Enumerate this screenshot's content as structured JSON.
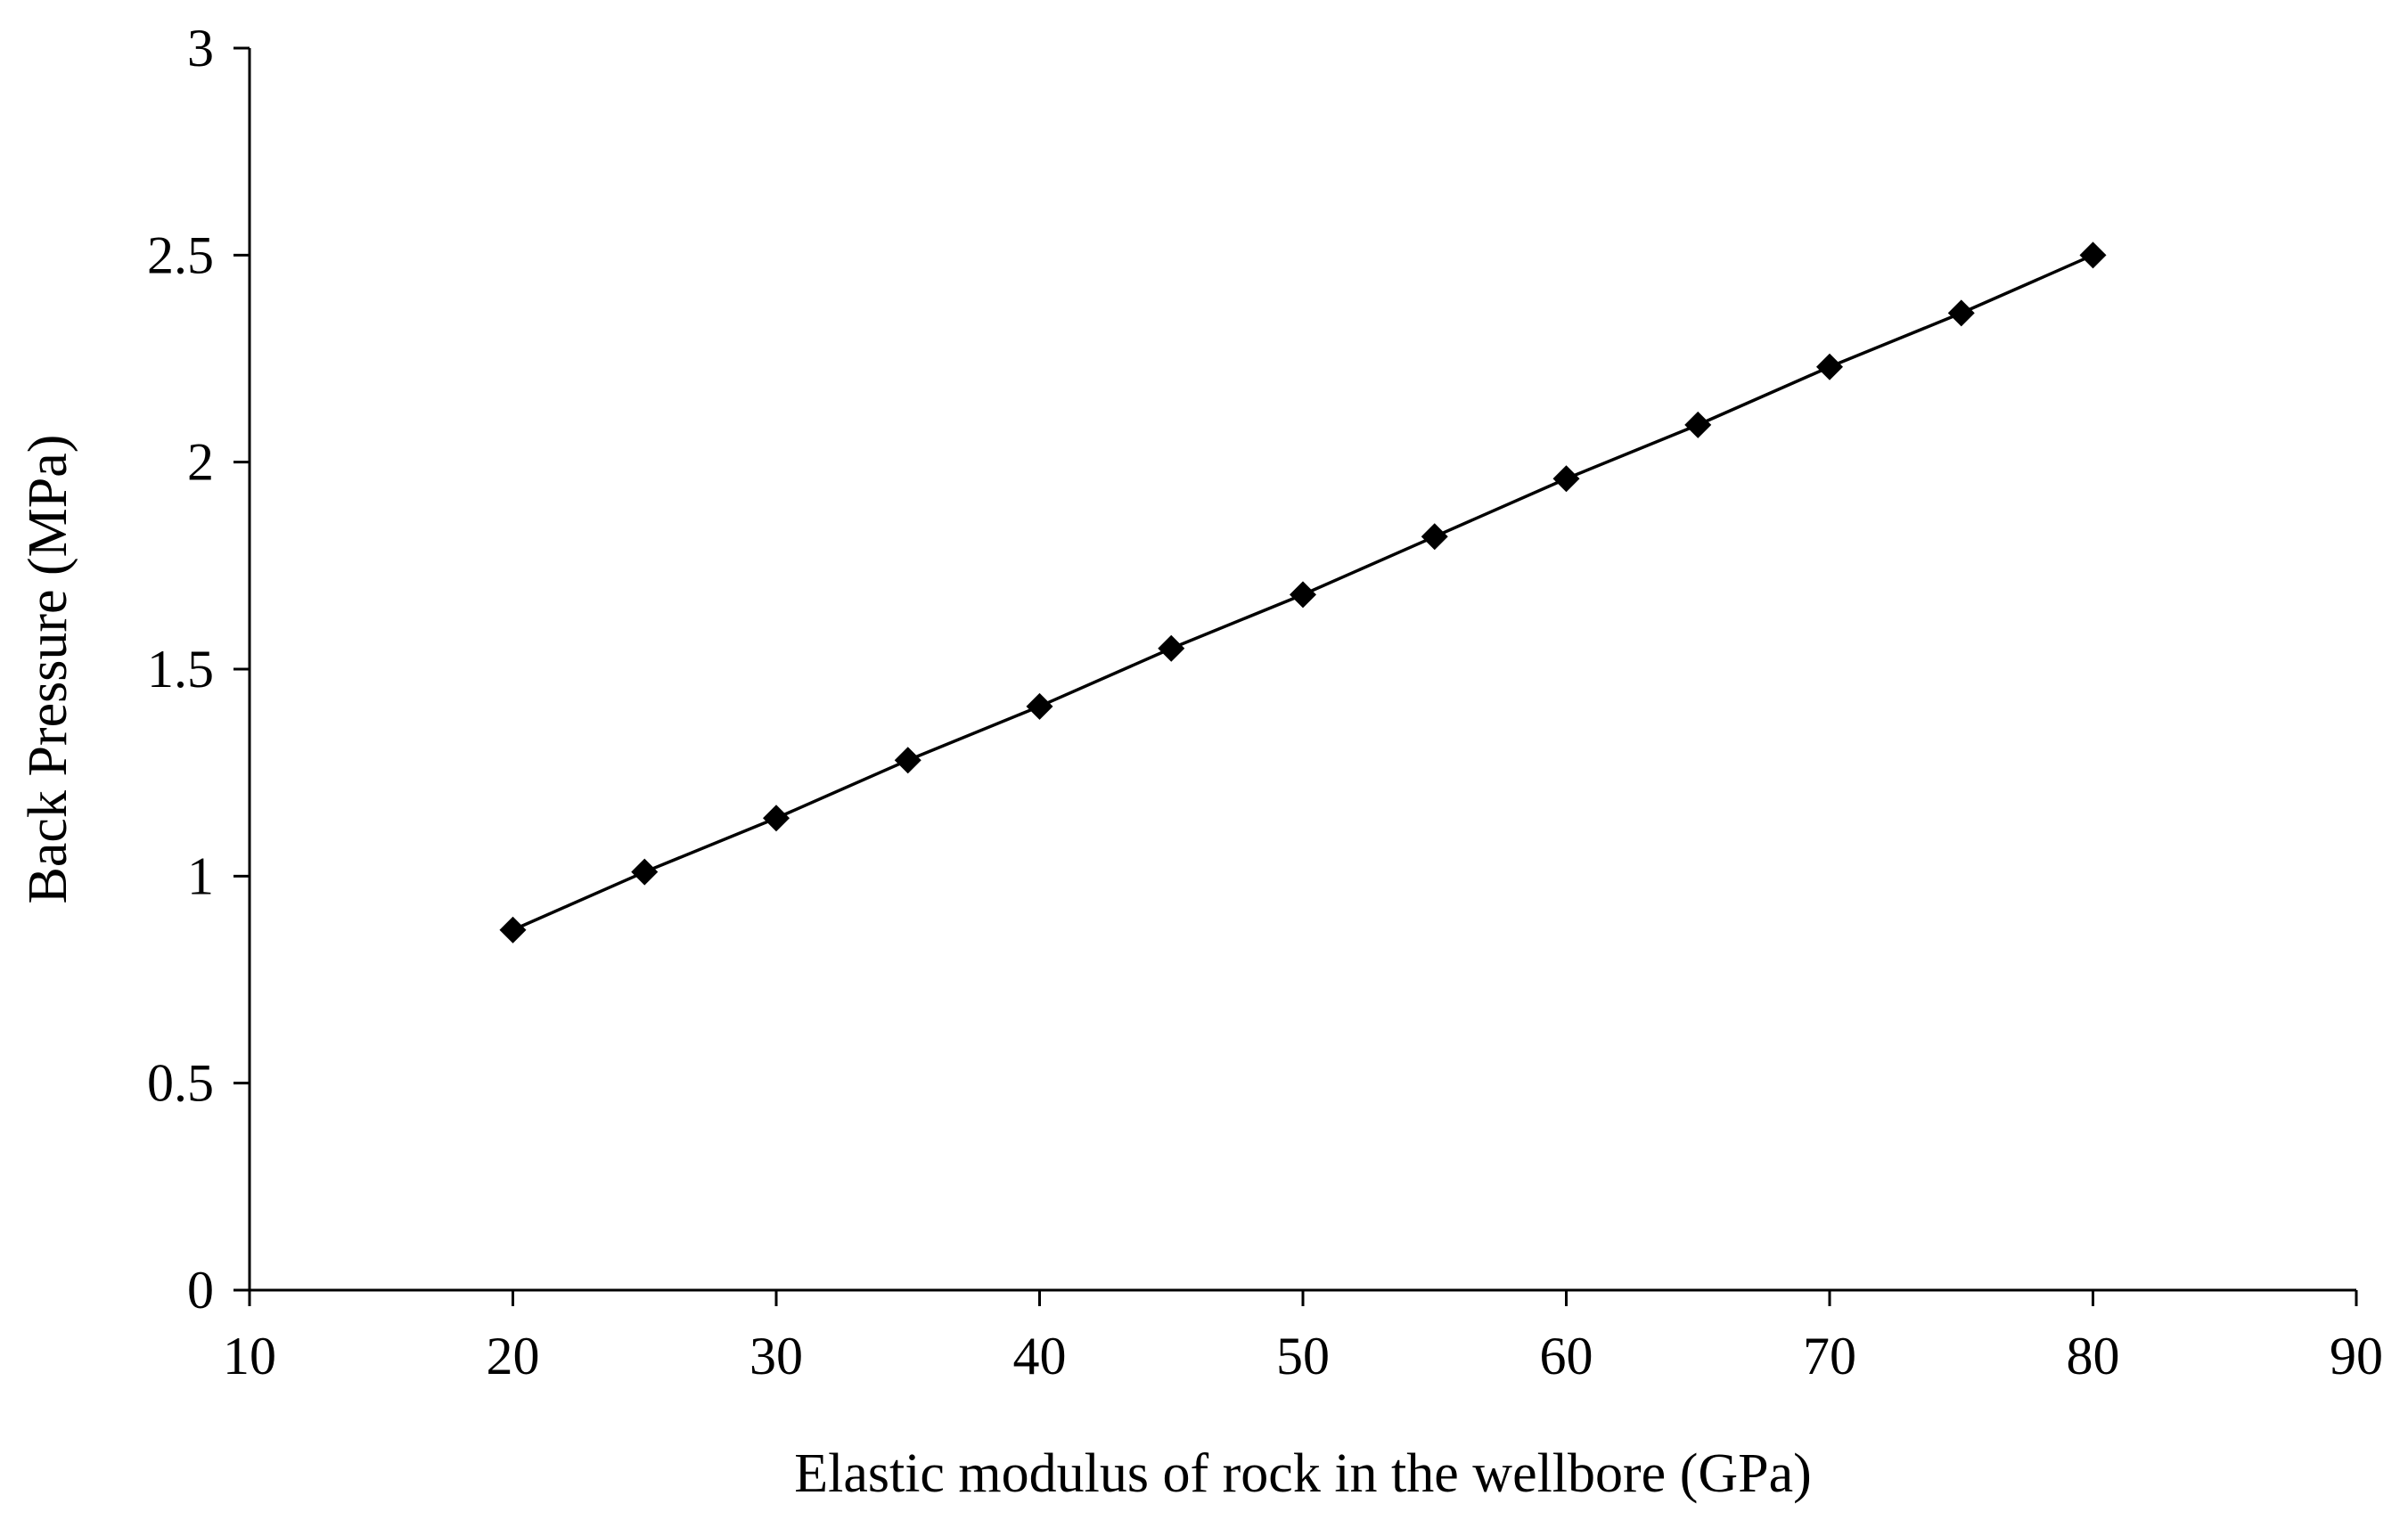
{
  "chart_data": {
    "type": "line",
    "title": "",
    "xlabel": "Elastic modulus of rock in the wellbore (GPa)",
    "ylabel": "Back Pressure (MPa)",
    "xlim": [
      10,
      90
    ],
    "ylim": [
      0,
      3
    ],
    "xticks": [
      10,
      20,
      30,
      40,
      50,
      60,
      70,
      80,
      90
    ],
    "yticks": [
      0,
      0.5,
      1,
      1.5,
      2,
      2.5,
      3
    ],
    "xtick_labels": [
      "10",
      "20",
      "30",
      "40",
      "50",
      "60",
      "70",
      "80",
      "90"
    ],
    "ytick_labels": [
      "0",
      "0.5",
      "1",
      "1.5",
      "2",
      "2.5",
      "3"
    ],
    "grid": false,
    "legend": "none",
    "series": [
      {
        "marker": "diamond",
        "color": "#000000",
        "x": [
          20,
          25,
          30,
          35,
          40,
          45,
          50,
          55,
          60,
          65,
          70,
          75,
          80
        ],
        "y": [
          0.87,
          1.01,
          1.14,
          1.28,
          1.41,
          1.55,
          1.68,
          1.82,
          1.96,
          2.09,
          2.23,
          2.36,
          2.5
        ]
      }
    ]
  }
}
